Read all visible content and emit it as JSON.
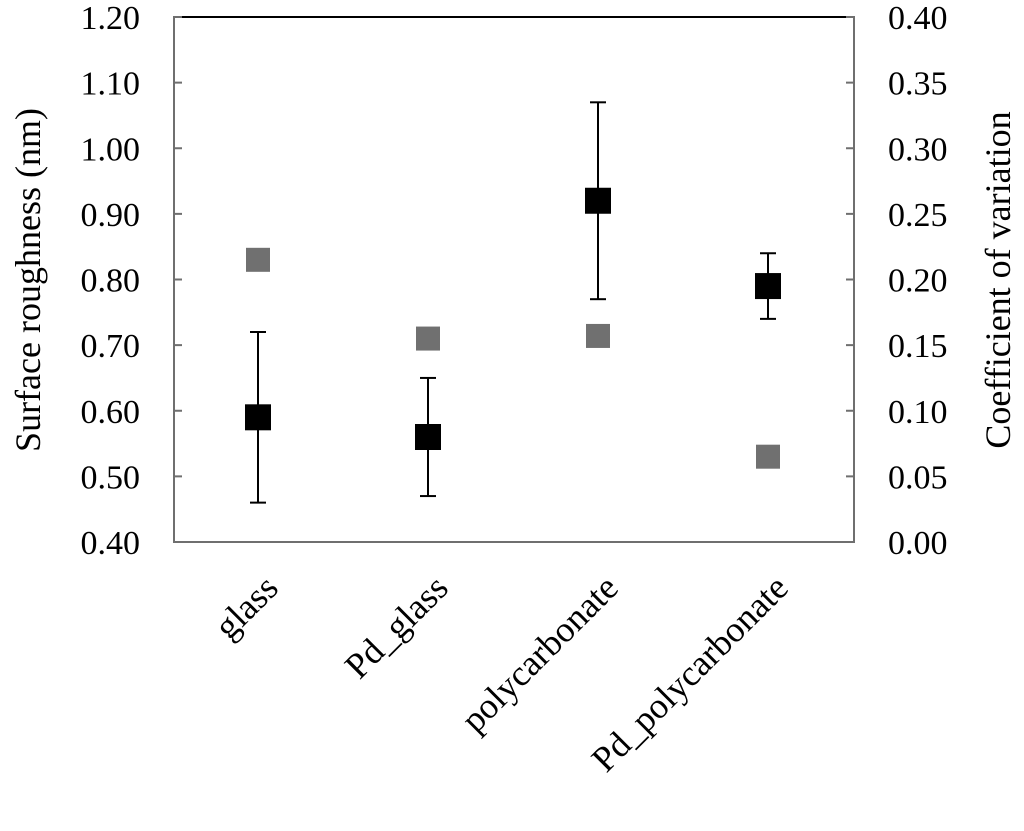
{
  "chart_data": {
    "type": "scatter",
    "title": "",
    "categories": [
      "glass",
      "Pd_glass",
      "polycarbonate",
      "Pd_polycarbonate"
    ],
    "ylabel": "Surface roughness (nm)",
    "y2label": "Coefficient of variation",
    "ylim": [
      0.4,
      1.2
    ],
    "y2lim": [
      0.0,
      0.4
    ],
    "yticks": [
      "0.40",
      "0.50",
      "0.60",
      "0.70",
      "0.80",
      "0.90",
      "1.00",
      "1.10",
      "1.20"
    ],
    "y2ticks": [
      "0.00",
      "0.05",
      "0.10",
      "0.15",
      "0.20",
      "0.25",
      "0.30",
      "0.35",
      "0.40"
    ],
    "grid": false,
    "legend": "none",
    "series": [
      {
        "axis": "left",
        "color": "#000000",
        "marker": "square",
        "values": [
          0.59,
          0.56,
          0.92,
          0.79
        ],
        "error_low": [
          0.46,
          0.47,
          0.77,
          0.74
        ],
        "error_high": [
          0.72,
          0.65,
          1.07,
          0.84
        ]
      },
      {
        "axis": "right",
        "color": "#707070",
        "marker": "square",
        "values": [
          0.215,
          0.155,
          0.157,
          0.065
        ]
      }
    ]
  }
}
